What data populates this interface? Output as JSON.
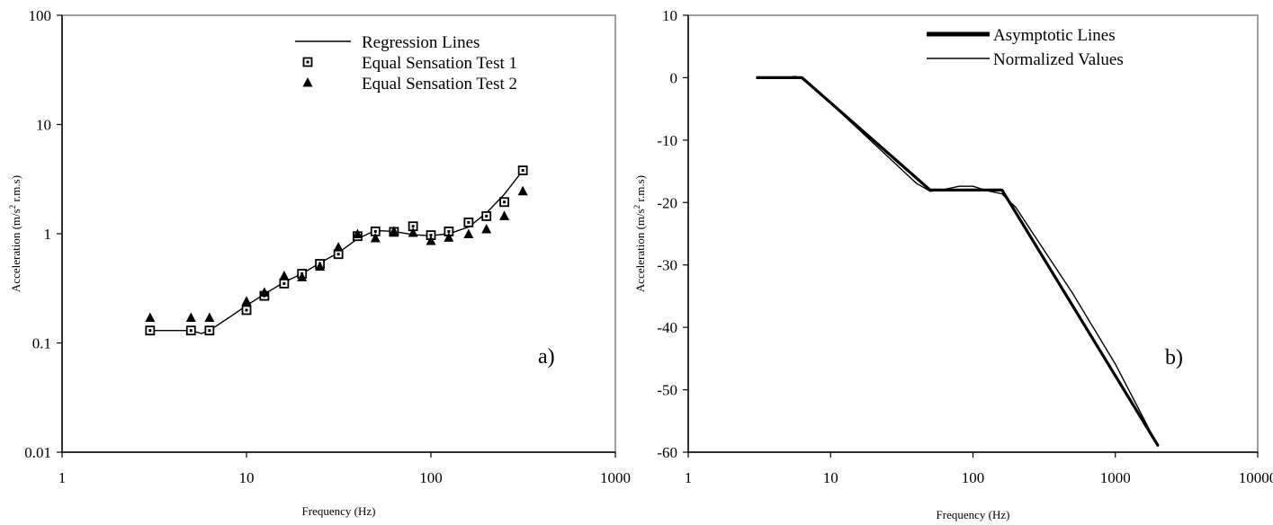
{
  "chart_data": [
    {
      "type": "scatter",
      "panel_label": "a)",
      "xlabel": "Frequency (Hz)",
      "ylabel_main": "Acceleration (m/s",
      "ylabel_sup": "2",
      "ylabel_tail": " r.m.s)",
      "x_scale": "log",
      "y_scale": "log",
      "xlim": [
        1,
        1000
      ],
      "ylim": [
        0.01,
        100
      ],
      "x_ticks": [
        1,
        10,
        100,
        1000
      ],
      "x_tick_labels": [
        "1",
        "10",
        "100",
        "1000"
      ],
      "y_ticks": [
        0.01,
        0.1,
        1,
        10,
        100
      ],
      "y_tick_labels": [
        "0.01",
        "0.1",
        "1",
        "10",
        "100"
      ],
      "grid": false,
      "legend_position": "top-right",
      "series": [
        {
          "name": "Regression Lines",
          "kind": "line",
          "x": [
            3,
            5,
            5.7,
            6.3,
            8,
            10,
            12.5,
            16,
            20,
            25,
            31.5,
            40,
            50,
            63,
            80,
            100,
            125,
            160,
            200,
            250,
            315
          ],
          "y": [
            0.13,
            0.13,
            0.122,
            0.13,
            0.17,
            0.22,
            0.28,
            0.36,
            0.43,
            0.54,
            0.67,
            0.9,
            1.07,
            1.05,
            0.98,
            0.96,
            1.0,
            1.15,
            1.55,
            2.3,
            3.8
          ]
        },
        {
          "name": "Equal Sensation Test 1",
          "kind": "square",
          "x": [
            3,
            5,
            6.3,
            10,
            12.5,
            16,
            20,
            25,
            31.5,
            40,
            50,
            63,
            80,
            100,
            125,
            160,
            200,
            250,
            315
          ],
          "y": [
            0.13,
            0.13,
            0.13,
            0.2,
            0.27,
            0.35,
            0.43,
            0.53,
            0.65,
            0.95,
            1.05,
            1.04,
            1.17,
            0.97,
            1.05,
            1.27,
            1.45,
            1.95,
            3.8
          ]
        },
        {
          "name": "Equal Sensation Test 2",
          "kind": "triangle",
          "x": [
            3,
            5,
            6.3,
            10,
            12.5,
            16,
            20,
            25,
            31.5,
            40,
            50,
            63,
            80,
            100,
            125,
            160,
            200,
            250,
            315
          ],
          "y": [
            0.17,
            0.17,
            0.17,
            0.24,
            0.29,
            0.41,
            0.4,
            0.5,
            0.75,
            0.99,
            0.91,
            1.05,
            1.02,
            0.86,
            0.92,
            0.99,
            1.1,
            1.45,
            2.45
          ]
        }
      ]
    },
    {
      "type": "line",
      "panel_label": "b)",
      "xlabel": "Frequency (Hz)",
      "ylabel_main": "Acceleration (m/s",
      "ylabel_sup": "2",
      "ylabel_tail": " r.m.s)",
      "x_scale": "log",
      "y_scale": "linear",
      "xlim": [
        1,
        10000
      ],
      "ylim": [
        -60,
        10
      ],
      "x_ticks": [
        1,
        10,
        100,
        1000,
        10000
      ],
      "x_tick_labels": [
        "1",
        "10",
        "100",
        "1000",
        "10000"
      ],
      "y_ticks": [
        10,
        0,
        -10,
        -20,
        -30,
        -40,
        -50,
        -60
      ],
      "y_tick_labels": [
        "10",
        "0",
        "-10",
        "-20",
        "-30",
        "-40",
        "-50",
        "-60"
      ],
      "grid": false,
      "legend_position": "top-right",
      "series": [
        {
          "name": "Asymptotic Lines",
          "kind": "thick-line",
          "x": [
            3,
            6.3,
            50,
            160,
            2000
          ],
          "y": [
            0,
            0,
            -18,
            -18,
            -59
          ]
        },
        {
          "name": "Normalized Values",
          "kind": "thin-line",
          "x": [
            3,
            5,
            5.5,
            6,
            6.3,
            8,
            10,
            20,
            40,
            50,
            63,
            80,
            100,
            125,
            160,
            200,
            500,
            1000,
            2000
          ],
          "y": [
            0,
            -0.1,
            0.2,
            0.1,
            -0.2,
            -2.1,
            -4.1,
            -10.5,
            -16.9,
            -18.2,
            -17.9,
            -17.4,
            -17.4,
            -18.1,
            -18.6,
            -20.8,
            -34.5,
            -45.9,
            -59.1
          ]
        }
      ]
    }
  ]
}
